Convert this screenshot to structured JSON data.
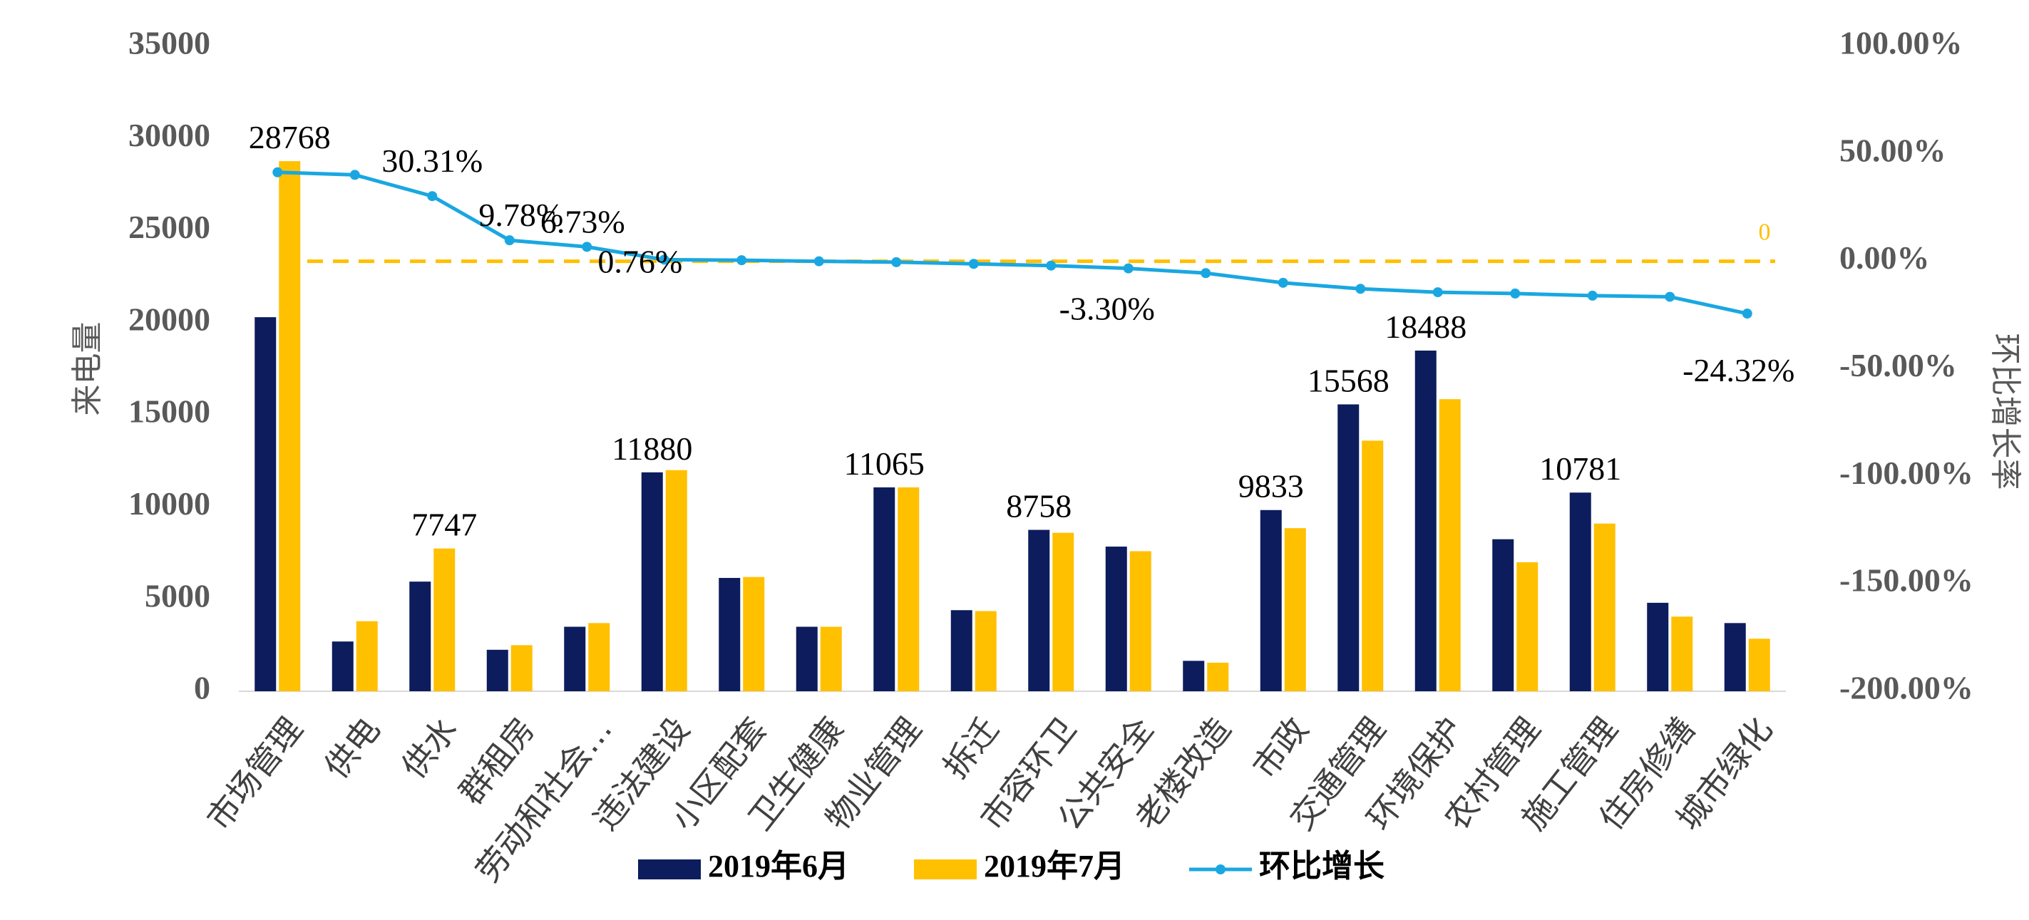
{
  "chart_data": {
    "type": "bar",
    "categories": [
      "市场管理",
      "供电",
      "供水",
      "群租房",
      "劳动和社会…",
      "违法建设",
      "小区配套",
      "卫生健康",
      "物业管理",
      "拆迁",
      "市容环卫",
      "公共安全",
      "老楼改造",
      "市政",
      "交通管理",
      "环境保护",
      "农村管理",
      "施工管理",
      "住房修缮",
      "城市绿化"
    ],
    "series": [
      {
        "name": "2019年6月",
        "axis": "left",
        "color": "#0C1C5C",
        "values": [
          20300,
          2700,
          5950,
          2250,
          3500,
          11880,
          6150,
          3500,
          11065,
          4400,
          8758,
          7850,
          1650,
          9833,
          15568,
          18488,
          8250,
          10781,
          4800,
          3700
        ]
      },
      {
        "name": "2019年7月",
        "axis": "left",
        "color": "#FFC000",
        "values": [
          28768,
          3800,
          7747,
          2500,
          3700,
          12000,
          6200,
          3500,
          11065,
          4350,
          8600,
          7600,
          1550,
          8850,
          13600,
          15850,
          7000,
          9100,
          4050,
          2850
        ]
      },
      {
        "name": "环比增长",
        "type": "line",
        "axis": "right",
        "color": "#1AA7E1",
        "values": [
          41.4,
          40.2,
          30.31,
          9.78,
          6.73,
          0.76,
          0.5,
          0.0,
          -0.4,
          -1.2,
          -2.0,
          -3.3,
          -5.5,
          -10.0,
          -12.8,
          -14.4,
          -15.0,
          -16.0,
          -16.5,
          -24.32
        ]
      }
    ],
    "data_labels": {
      "bars": [
        {
          "series": 1,
          "index": 0,
          "text": "28768"
        },
        {
          "series": 1,
          "index": 2,
          "text": "7747"
        },
        {
          "series": 0,
          "index": 5,
          "text": "11880"
        },
        {
          "series": 0,
          "index": 8,
          "text": "11065"
        },
        {
          "series": 0,
          "index": 10,
          "text": "8758"
        },
        {
          "series": 0,
          "index": 13,
          "text": "9833"
        },
        {
          "series": 0,
          "index": 14,
          "text": "15568"
        },
        {
          "series": 0,
          "index": 15,
          "text": "18488"
        },
        {
          "series": 0,
          "index": 17,
          "text": "10781"
        }
      ],
      "line": [
        {
          "index": 2,
          "text": "30.31%"
        },
        {
          "index": 3,
          "text": "9.78%"
        },
        {
          "index": 4,
          "text": "6.73%"
        },
        {
          "index": 5,
          "text": "0.76%"
        },
        {
          "index": 11,
          "text": "-3.30%"
        },
        {
          "index": 19,
          "text": "-24.32%"
        }
      ]
    },
    "reference_line": {
      "value": 0,
      "label": "0",
      "color": "#FFC000",
      "style": "dashed"
    },
    "ylabel": "来电量",
    "y2label": "环比增长率",
    "ylim": [
      0,
      35000
    ],
    "yticks": [
      "0",
      "5000",
      "10000",
      "15000",
      "20000",
      "25000",
      "30000",
      "35000"
    ],
    "y2lim": [
      -200,
      100
    ],
    "y2ticks": [
      "-200.00%",
      "-150.00%",
      "-100.00%",
      "-50.00%",
      "0.00%",
      "50.00%",
      "100.00%"
    ],
    "grid": false,
    "legend_position": "bottom"
  }
}
